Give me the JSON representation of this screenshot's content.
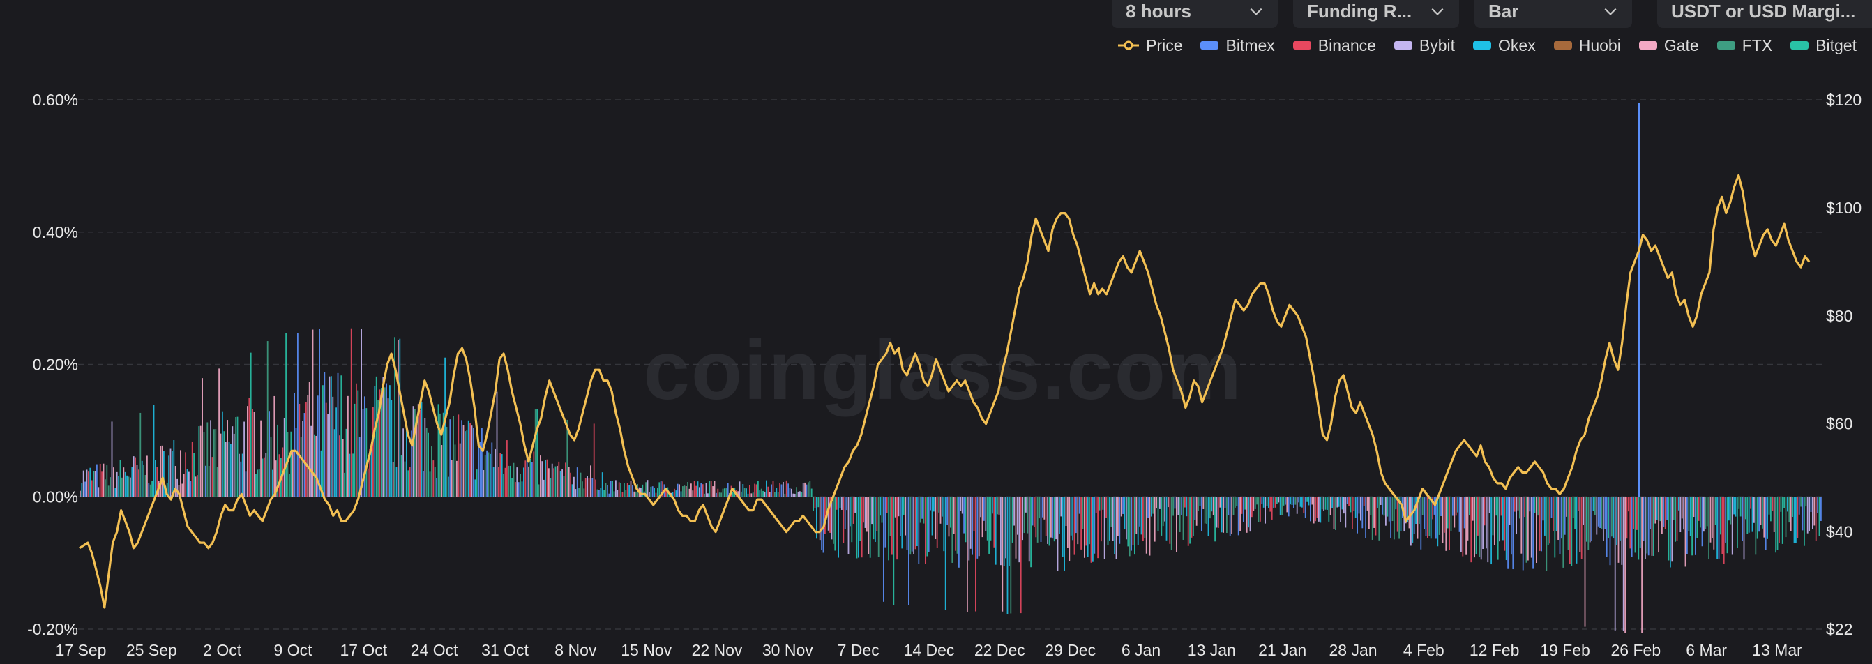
{
  "controls": {
    "interval": "8 hours",
    "metric": "Funding R...",
    "chart_style": "Bar",
    "margin_type": "USDT or USD Margi..."
  },
  "watermark": "coinglass.com",
  "colors": {
    "background": "#1b1b1f",
    "price": "#f3c053",
    "bitmex": "#5b8ff9",
    "binance": "#e8485f",
    "bybit": "#c4b5f0",
    "okex": "#1fc0e6",
    "huobi": "#a76a3c",
    "gate": "#f3a9c4",
    "ftx": "#3e9e82",
    "bitget": "#29c2a6"
  },
  "chart_data": {
    "type": "bar",
    "title": "",
    "xlabel": "",
    "ylabel": "",
    "y_left": {
      "range": [
        -0.2,
        0.6
      ],
      "ticks": [
        "0.60%",
        "0.40%",
        "0.20%",
        "0.00%",
        "-0.20%"
      ]
    },
    "y_right": {
      "range": [
        22,
        120
      ],
      "ticks": [
        "$120",
        "$100",
        "$80",
        "$60",
        "$40",
        "$22"
      ]
    },
    "x_ticks": [
      "17 Sep",
      "25 Sep",
      "2 Oct",
      "9 Oct",
      "17 Oct",
      "24 Oct",
      "31 Oct",
      "8 Nov",
      "15 Nov",
      "22 Nov",
      "30 Nov",
      "7 Dec",
      "14 Dec",
      "22 Dec",
      "29 Dec",
      "6 Jan",
      "13 Jan",
      "21 Jan",
      "28 Jan",
      "4 Feb",
      "12 Feb",
      "19 Feb",
      "26 Feb",
      "6 Mar",
      "13 Mar"
    ],
    "legend_placement": "top-right",
    "grid": true,
    "series": [
      {
        "name": "Price",
        "kind": "line",
        "axis": "right"
      },
      {
        "name": "Bitmex",
        "kind": "bar",
        "axis": "left"
      },
      {
        "name": "Binance",
        "kind": "bar",
        "axis": "left"
      },
      {
        "name": "Bybit",
        "kind": "bar",
        "axis": "left"
      },
      {
        "name": "Okex",
        "kind": "bar",
        "axis": "left"
      },
      {
        "name": "Huobi",
        "kind": "bar",
        "axis": "left"
      },
      {
        "name": "Gate",
        "kind": "bar",
        "axis": "left"
      },
      {
        "name": "FTX",
        "kind": "bar",
        "axis": "left"
      },
      {
        "name": "Bitget",
        "kind": "bar",
        "axis": "left"
      }
    ],
    "price_points": [
      [
        0,
        37
      ],
      [
        2,
        38
      ],
      [
        3,
        36
      ],
      [
        5,
        30
      ],
      [
        6,
        26
      ],
      [
        7,
        32
      ],
      [
        8,
        38
      ],
      [
        9,
        40
      ],
      [
        10,
        44
      ],
      [
        11,
        42
      ],
      [
        12,
        40
      ],
      [
        13,
        37
      ],
      [
        14,
        38
      ],
      [
        15,
        40
      ],
      [
        16,
        42
      ],
      [
        17,
        44
      ],
      [
        18,
        46
      ],
      [
        19,
        48
      ],
      [
        20,
        50
      ],
      [
        21,
        47
      ],
      [
        22,
        46
      ],
      [
        23,
        48
      ],
      [
        24,
        47
      ],
      [
        25,
        44
      ],
      [
        26,
        41
      ],
      [
        27,
        40
      ],
      [
        28,
        39
      ],
      [
        29,
        38
      ],
      [
        30,
        38
      ],
      [
        31,
        37
      ],
      [
        32,
        38
      ],
      [
        33,
        40
      ],
      [
        34,
        43
      ],
      [
        35,
        45
      ],
      [
        36,
        44
      ],
      [
        37,
        44
      ],
      [
        38,
        46
      ],
      [
        39,
        47
      ],
      [
        40,
        45
      ],
      [
        41,
        43
      ],
      [
        42,
        44
      ],
      [
        43,
        43
      ],
      [
        44,
        42
      ],
      [
        45,
        44
      ],
      [
        46,
        46
      ],
      [
        47,
        47
      ],
      [
        48,
        49
      ],
      [
        49,
        51
      ],
      [
        50,
        53
      ],
      [
        51,
        55
      ],
      [
        52,
        55
      ],
      [
        53,
        54
      ],
      [
        54,
        53
      ],
      [
        55,
        52
      ],
      [
        56,
        51
      ],
      [
        57,
        50
      ],
      [
        58,
        48
      ],
      [
        59,
        46
      ],
      [
        60,
        45
      ],
      [
        61,
        43
      ],
      [
        62,
        44
      ],
      [
        63,
        42
      ],
      [
        64,
        42
      ],
      [
        65,
        43
      ],
      [
        66,
        44
      ],
      [
        67,
        46
      ],
      [
        68,
        49
      ],
      [
        69,
        52
      ],
      [
        70,
        55
      ],
      [
        71,
        59
      ],
      [
        72,
        62
      ],
      [
        73,
        67
      ],
      [
        74,
        71
      ],
      [
        75,
        73
      ],
      [
        76,
        70
      ],
      [
        77,
        66
      ],
      [
        78,
        62
      ],
      [
        79,
        58
      ],
      [
        80,
        56
      ],
      [
        81,
        60
      ],
      [
        82,
        64
      ],
      [
        83,
        68
      ],
      [
        84,
        66
      ],
      [
        85,
        63
      ],
      [
        86,
        60
      ],
      [
        87,
        58
      ],
      [
        88,
        61
      ],
      [
        89,
        64
      ],
      [
        90,
        69
      ],
      [
        91,
        73
      ],
      [
        92,
        74
      ],
      [
        93,
        72
      ],
      [
        94,
        68
      ],
      [
        95,
        63
      ],
      [
        96,
        56
      ],
      [
        97,
        55
      ],
      [
        98,
        58
      ],
      [
        99,
        62
      ],
      [
        100,
        66
      ],
      [
        101,
        72
      ],
      [
        102,
        73
      ],
      [
        103,
        70
      ],
      [
        104,
        66
      ],
      [
        105,
        63
      ],
      [
        106,
        60
      ],
      [
        107,
        56
      ],
      [
        108,
        53
      ],
      [
        109,
        56
      ],
      [
        110,
        59
      ],
      [
        111,
        61
      ],
      [
        112,
        65
      ],
      [
        113,
        68
      ],
      [
        114,
        66
      ],
      [
        115,
        64
      ],
      [
        116,
        62
      ],
      [
        117,
        60
      ],
      [
        118,
        58
      ],
      [
        119,
        57
      ],
      [
        120,
        59
      ],
      [
        121,
        62
      ],
      [
        122,
        65
      ],
      [
        123,
        68
      ],
      [
        124,
        70
      ],
      [
        125,
        70
      ],
      [
        126,
        68
      ],
      [
        127,
        68
      ],
      [
        128,
        66
      ],
      [
        129,
        62
      ],
      [
        130,
        59
      ],
      [
        131,
        55
      ],
      [
        132,
        52
      ],
      [
        133,
        50
      ],
      [
        134,
        48
      ],
      [
        135,
        47
      ],
      [
        136,
        47
      ],
      [
        137,
        46
      ],
      [
        138,
        45
      ],
      [
        139,
        46
      ],
      [
        140,
        47
      ],
      [
        141,
        48
      ],
      [
        142,
        47
      ],
      [
        143,
        46
      ],
      [
        144,
        44
      ],
      [
        145,
        43
      ],
      [
        146,
        43
      ],
      [
        147,
        42
      ],
      [
        148,
        42
      ],
      [
        149,
        44
      ],
      [
        150,
        45
      ],
      [
        151,
        43
      ],
      [
        152,
        41
      ],
      [
        153,
        40
      ],
      [
        154,
        42
      ],
      [
        155,
        44
      ],
      [
        156,
        46
      ],
      [
        157,
        48
      ],
      [
        158,
        47
      ],
      [
        159,
        46
      ],
      [
        160,
        45
      ],
      [
        161,
        44
      ],
      [
        162,
        44
      ],
      [
        163,
        46
      ],
      [
        164,
        46
      ],
      [
        165,
        45
      ],
      [
        166,
        44
      ],
      [
        167,
        43
      ],
      [
        168,
        42
      ],
      [
        169,
        41
      ],
      [
        170,
        40
      ],
      [
        171,
        41
      ],
      [
        172,
        42
      ],
      [
        173,
        42
      ],
      [
        174,
        43
      ],
      [
        175,
        42
      ],
      [
        176,
        41
      ],
      [
        177,
        40
      ],
      [
        178,
        40
      ],
      [
        179,
        41
      ],
      [
        180,
        44
      ],
      [
        181,
        46
      ],
      [
        182,
        48
      ],
      [
        183,
        50
      ],
      [
        184,
        52
      ],
      [
        185,
        53
      ],
      [
        186,
        55
      ],
      [
        187,
        56
      ],
      [
        188,
        58
      ],
      [
        189,
        61
      ],
      [
        190,
        64
      ],
      [
        191,
        67
      ],
      [
        192,
        71
      ],
      [
        193,
        72
      ],
      [
        194,
        73
      ],
      [
        195,
        75
      ],
      [
        196,
        73
      ],
      [
        197,
        74
      ],
      [
        198,
        70
      ],
      [
        199,
        69
      ],
      [
        200,
        71
      ],
      [
        201,
        73
      ],
      [
        202,
        71
      ],
      [
        203,
        68
      ],
      [
        204,
        67
      ],
      [
        205,
        69
      ],
      [
        206,
        72
      ],
      [
        207,
        70
      ],
      [
        208,
        68
      ],
      [
        209,
        66
      ],
      [
        210,
        67
      ],
      [
        211,
        68
      ],
      [
        212,
        67
      ],
      [
        213,
        68
      ],
      [
        214,
        66
      ],
      [
        215,
        64
      ],
      [
        216,
        63
      ],
      [
        217,
        61
      ],
      [
        218,
        60
      ],
      [
        219,
        62
      ],
      [
        220,
        64
      ],
      [
        221,
        66
      ],
      [
        222,
        70
      ],
      [
        223,
        73
      ],
      [
        224,
        77
      ],
      [
        225,
        81
      ],
      [
        226,
        85
      ],
      [
        227,
        87
      ],
      [
        228,
        90
      ],
      [
        229,
        95
      ],
      [
        230,
        98
      ],
      [
        231,
        96
      ],
      [
        232,
        94
      ],
      [
        233,
        92
      ],
      [
        234,
        96
      ],
      [
        235,
        98
      ],
      [
        236,
        99
      ],
      [
        237,
        99
      ],
      [
        238,
        98
      ],
      [
        239,
        95
      ],
      [
        240,
        93
      ],
      [
        241,
        90
      ],
      [
        242,
        87
      ],
      [
        243,
        84
      ],
      [
        244,
        86
      ],
      [
        245,
        84
      ],
      [
        246,
        85
      ],
      [
        247,
        84
      ],
      [
        248,
        86
      ],
      [
        249,
        88
      ],
      [
        250,
        90
      ],
      [
        251,
        91
      ],
      [
        252,
        89
      ],
      [
        253,
        88
      ],
      [
        254,
        90
      ],
      [
        255,
        92
      ],
      [
        256,
        90
      ],
      [
        257,
        88
      ],
      [
        258,
        85
      ],
      [
        259,
        82
      ],
      [
        260,
        80
      ],
      [
        261,
        77
      ],
      [
        262,
        74
      ],
      [
        263,
        70
      ],
      [
        264,
        68
      ],
      [
        265,
        66
      ],
      [
        266,
        63
      ],
      [
        267,
        65
      ],
      [
        268,
        68
      ],
      [
        269,
        67
      ],
      [
        270,
        64
      ],
      [
        271,
        66
      ],
      [
        272,
        68
      ],
      [
        273,
        70
      ],
      [
        274,
        72
      ],
      [
        275,
        74
      ],
      [
        276,
        77
      ],
      [
        277,
        80
      ],
      [
        278,
        83
      ],
      [
        279,
        82
      ],
      [
        280,
        81
      ],
      [
        281,
        82
      ],
      [
        282,
        84
      ],
      [
        283,
        85
      ],
      [
        284,
        86
      ],
      [
        285,
        86
      ],
      [
        286,
        84
      ],
      [
        287,
        81
      ],
      [
        288,
        79
      ],
      [
        289,
        78
      ],
      [
        290,
        80
      ],
      [
        291,
        82
      ],
      [
        292,
        81
      ],
      [
        293,
        80
      ],
      [
        294,
        78
      ],
      [
        295,
        76
      ],
      [
        296,
        72
      ],
      [
        297,
        68
      ],
      [
        298,
        63
      ],
      [
        299,
        58
      ],
      [
        300,
        57
      ],
      [
        301,
        60
      ],
      [
        302,
        65
      ],
      [
        303,
        68
      ],
      [
        304,
        69
      ],
      [
        305,
        66
      ],
      [
        306,
        63
      ],
      [
        307,
        62
      ],
      [
        308,
        64
      ],
      [
        309,
        62
      ],
      [
        310,
        60
      ],
      [
        311,
        58
      ],
      [
        312,
        55
      ],
      [
        313,
        51
      ],
      [
        314,
        49
      ],
      [
        315,
        48
      ],
      [
        316,
        47
      ],
      [
        317,
        46
      ],
      [
        318,
        45
      ],
      [
        319,
        42
      ],
      [
        320,
        43
      ],
      [
        321,
        44
      ],
      [
        322,
        46
      ],
      [
        323,
        48
      ],
      [
        324,
        47
      ],
      [
        325,
        46
      ],
      [
        326,
        45
      ],
      [
        327,
        47
      ],
      [
        328,
        49
      ],
      [
        329,
        51
      ],
      [
        330,
        53
      ],
      [
        331,
        55
      ],
      [
        332,
        56
      ],
      [
        333,
        57
      ],
      [
        334,
        56
      ],
      [
        335,
        55
      ],
      [
        336,
        54
      ],
      [
        337,
        56
      ],
      [
        338,
        53
      ],
      [
        339,
        52
      ],
      [
        340,
        50
      ],
      [
        341,
        49
      ],
      [
        342,
        49
      ],
      [
        343,
        48
      ],
      [
        344,
        50
      ],
      [
        345,
        51
      ],
      [
        346,
        52
      ],
      [
        347,
        51
      ],
      [
        348,
        51
      ],
      [
        349,
        52
      ],
      [
        350,
        53
      ],
      [
        351,
        52
      ],
      [
        352,
        51
      ],
      [
        353,
        49
      ],
      [
        354,
        48
      ],
      [
        355,
        48
      ],
      [
        356,
        47
      ],
      [
        357,
        48
      ],
      [
        358,
        50
      ],
      [
        359,
        52
      ],
      [
        360,
        55
      ],
      [
        361,
        57
      ],
      [
        362,
        58
      ],
      [
        363,
        61
      ],
      [
        364,
        63
      ],
      [
        365,
        65
      ],
      [
        366,
        68
      ],
      [
        367,
        72
      ],
      [
        368,
        75
      ],
      [
        369,
        72
      ],
      [
        370,
        70
      ],
      [
        371,
        75
      ],
      [
        372,
        82
      ],
      [
        373,
        88
      ],
      [
        374,
        90
      ],
      [
        375,
        92
      ],
      [
        376,
        95
      ],
      [
        377,
        94
      ],
      [
        378,
        92
      ],
      [
        379,
        93
      ],
      [
        380,
        91
      ],
      [
        381,
        89
      ],
      [
        382,
        87
      ],
      [
        383,
        88
      ],
      [
        384,
        84
      ],
      [
        385,
        82
      ],
      [
        386,
        83
      ],
      [
        387,
        80
      ],
      [
        388,
        78
      ],
      [
        389,
        80
      ],
      [
        390,
        84
      ],
      [
        391,
        86
      ],
      [
        392,
        88
      ],
      [
        393,
        96
      ],
      [
        394,
        100
      ],
      [
        395,
        102
      ],
      [
        396,
        99
      ],
      [
        397,
        101
      ],
      [
        398,
        104
      ],
      [
        399,
        106
      ],
      [
        400,
        103
      ],
      [
        401,
        98
      ],
      [
        402,
        94
      ],
      [
        403,
        91
      ],
      [
        404,
        93
      ],
      [
        405,
        95
      ],
      [
        406,
        96
      ],
      [
        407,
        94
      ],
      [
        408,
        93
      ],
      [
        409,
        95
      ],
      [
        410,
        97
      ],
      [
        411,
        94
      ],
      [
        412,
        92
      ],
      [
        413,
        90
      ],
      [
        414,
        89
      ],
      [
        415,
        91
      ],
      [
        416,
        90
      ]
    ]
  }
}
